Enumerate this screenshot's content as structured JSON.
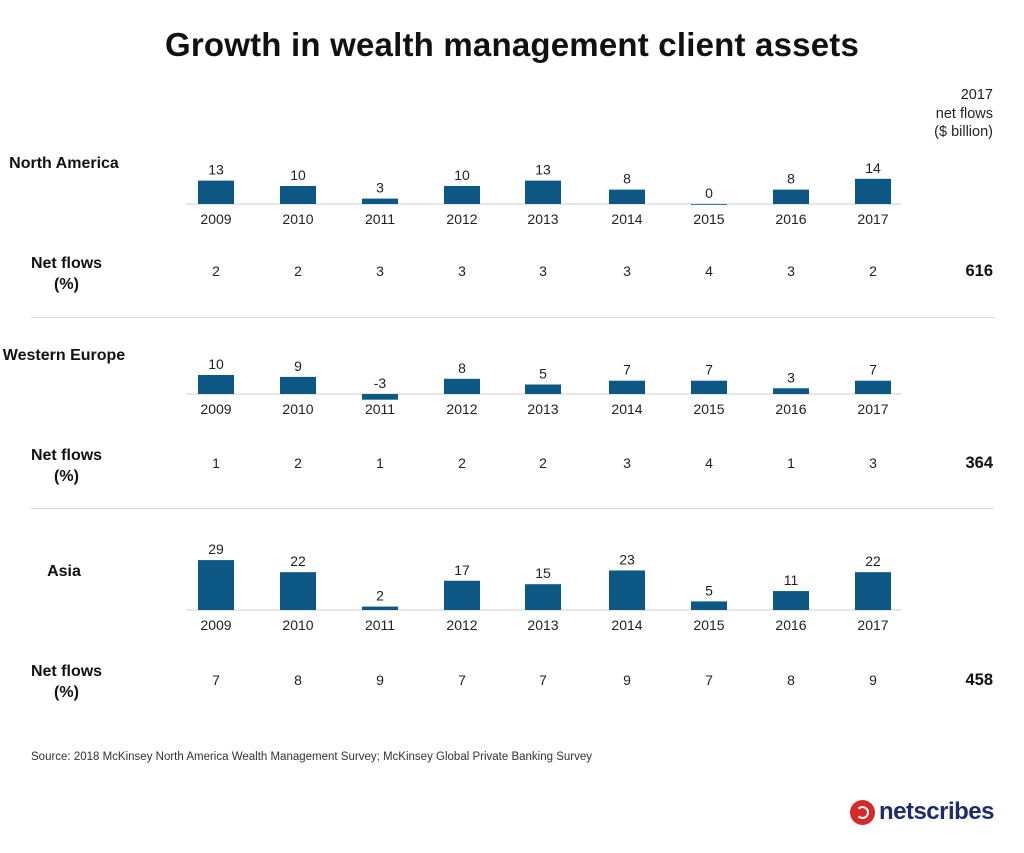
{
  "title": "Growth in wealth management client assets",
  "flows_header": [
    "2017",
    "net flows",
    "($ billion)"
  ],
  "netflows_label": [
    "Net flows",
    "(%)"
  ],
  "source": "Source: 2018 McKinsey North America Wealth Management Survey; McKinsey Global Private Banking Survey",
  "logo_text": "netscribes",
  "bar_color": "#0d5784",
  "chart_data": [
    {
      "type": "bar",
      "title": "North America",
      "categories": [
        "2009",
        "2010",
        "2011",
        "2012",
        "2013",
        "2014",
        "2015",
        "2016",
        "2017"
      ],
      "values": [
        13,
        10,
        3,
        10,
        13,
        8,
        0,
        8,
        14
      ],
      "net_flows_pct": [
        2,
        2,
        3,
        3,
        3,
        3,
        4,
        3,
        2
      ],
      "net_flows_2017_usd_billion": "616"
    },
    {
      "type": "bar",
      "title": "Western Europe",
      "categories": [
        "2009",
        "2010",
        "2011",
        "2012",
        "2013",
        "2014",
        "2015",
        "2016",
        "2017"
      ],
      "values": [
        10,
        9,
        -3,
        8,
        5,
        7,
        7,
        3,
        7
      ],
      "net_flows_pct": [
        1,
        2,
        1,
        2,
        2,
        3,
        4,
        1,
        3
      ],
      "net_flows_2017_usd_billion": "364"
    },
    {
      "type": "bar",
      "title": "Asia",
      "categories": [
        "2009",
        "2010",
        "2011",
        "2012",
        "2013",
        "2014",
        "2015",
        "2016",
        "2017"
      ],
      "values": [
        29,
        22,
        2,
        17,
        15,
        23,
        5,
        11,
        22
      ],
      "net_flows_pct": [
        7,
        8,
        9,
        7,
        7,
        9,
        7,
        8,
        9
      ],
      "net_flows_2017_usd_billion": "458"
    }
  ]
}
